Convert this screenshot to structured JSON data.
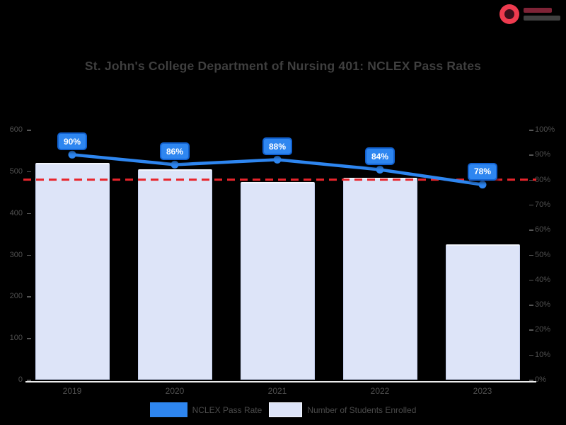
{
  "header": {
    "title": "St. John's College Department of Nursing 401: NCLEX Pass Rates"
  },
  "logo": {
    "accent_color": "#ee3b4f"
  },
  "chart_data": {
    "type": "bar",
    "subtype": "bar-line-combo",
    "title": "St. John's College Department of Nursing 401: NCLEX Pass Rates",
    "categories": [
      "2019",
      "2020",
      "2021",
      "2022",
      "2023"
    ],
    "series": [
      {
        "name": "NCLEX Pass Rate",
        "type": "line",
        "axis": "right",
        "values": [
          90,
          86,
          88,
          84,
          78
        ],
        "point_labels": [
          "90%",
          "86%",
          "88%",
          "84%",
          "78%"
        ],
        "color": "#2e86f0"
      },
      {
        "name": "Number of Students Enrolled",
        "type": "bar",
        "axis": "left",
        "values": [
          520,
          505,
          475,
          485,
          325
        ],
        "color": "#dde4f8"
      }
    ],
    "benchmark_line": {
      "axis": "right",
      "value": 80,
      "style": "dashed",
      "color": "#e8242b"
    },
    "axes": {
      "left": {
        "min": 0,
        "max": 600,
        "ticks": [
          "600",
          "500",
          "400",
          "300",
          "200",
          "100",
          "0"
        ]
      },
      "right": {
        "min": 0,
        "max": 100,
        "ticks": [
          "100%",
          "90%",
          "80%",
          "70%",
          "60%",
          "50%",
          "40%",
          "30%",
          "20%",
          "10%",
          "0%"
        ]
      }
    },
    "grid": false,
    "legend_position": "bottom",
    "background": "#000000"
  },
  "legend": {
    "items": [
      {
        "label": "NCLEX Pass Rate",
        "swatch_color": "#2e86f0"
      },
      {
        "label": "Number of Students Enrolled",
        "swatch_color": "#dde4f8"
      }
    ]
  }
}
